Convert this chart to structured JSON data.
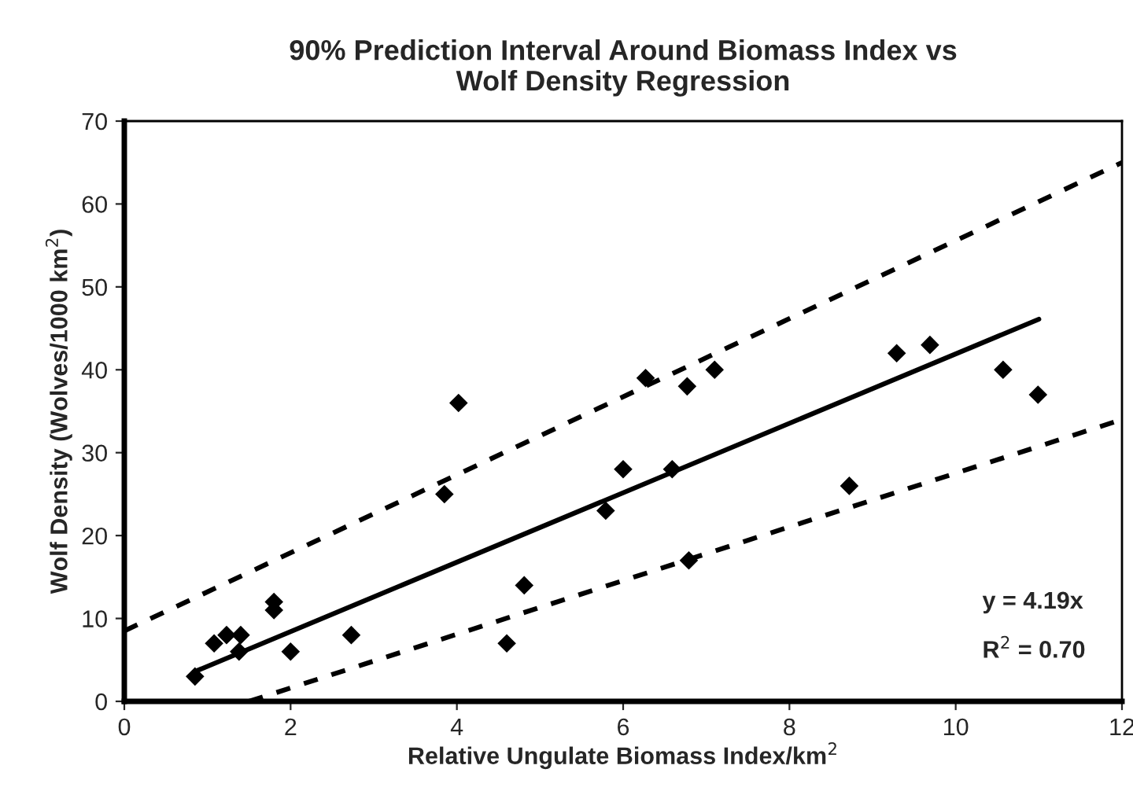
{
  "chart_data": {
    "type": "scatter",
    "title": "90% Prediction Interval Around Biomass Index vs\nWolf Density Regression",
    "xlabel": "Relative Ungulate Biomass Index/km$^{2}$",
    "ylabel": "Wolf Density (Wolves/1000 km$^{2}$)",
    "x": [
      0.85,
      1.08,
      1.23,
      1.4,
      1.38,
      1.8,
      1.8,
      2.0,
      2.73,
      3.85,
      4.02,
      4.6,
      4.81,
      5.79,
      6.0,
      6.27,
      6.59,
      6.77,
      6.79,
      7.1,
      8.72,
      9.29,
      9.69,
      10.57,
      10.99
    ],
    "series": [
      {
        "color": "#000000",
        "marker": "diamond",
        "values": [
          3,
          7,
          8,
          8,
          6,
          12,
          11,
          6,
          8,
          25,
          36,
          7,
          14,
          23,
          28,
          39,
          28,
          38,
          17,
          40,
          26,
          42,
          43,
          40,
          37
        ]
      },
      {
        "type": "line",
        "color": "#000000",
        "line_style": "solid",
        "x": [
          0.85,
          11.0
        ],
        "values": [
          3.6,
          46.1
        ]
      },
      {
        "type": "line",
        "color": "#000000",
        "line_style": "dashed",
        "x": [
          0,
          12
        ],
        "values": [
          8.5,
          65
        ]
      },
      {
        "type": "line",
        "color": "#000000",
        "line_style": "dashed",
        "x": [
          1.5,
          12
        ],
        "values": [
          0,
          34
        ]
      }
    ],
    "xlim": [
      0,
      12
    ],
    "xticks": [
      0,
      2,
      4,
      6,
      8,
      10,
      12
    ],
    "ylim": [
      0,
      70
    ],
    "yticks": [
      0,
      10,
      20,
      30,
      40,
      50,
      60,
      70
    ],
    "grid": false,
    "legend": false,
    "annotations": [
      "y = 4.19x",
      "R$^{2}$ = 0.70"
    ]
  }
}
